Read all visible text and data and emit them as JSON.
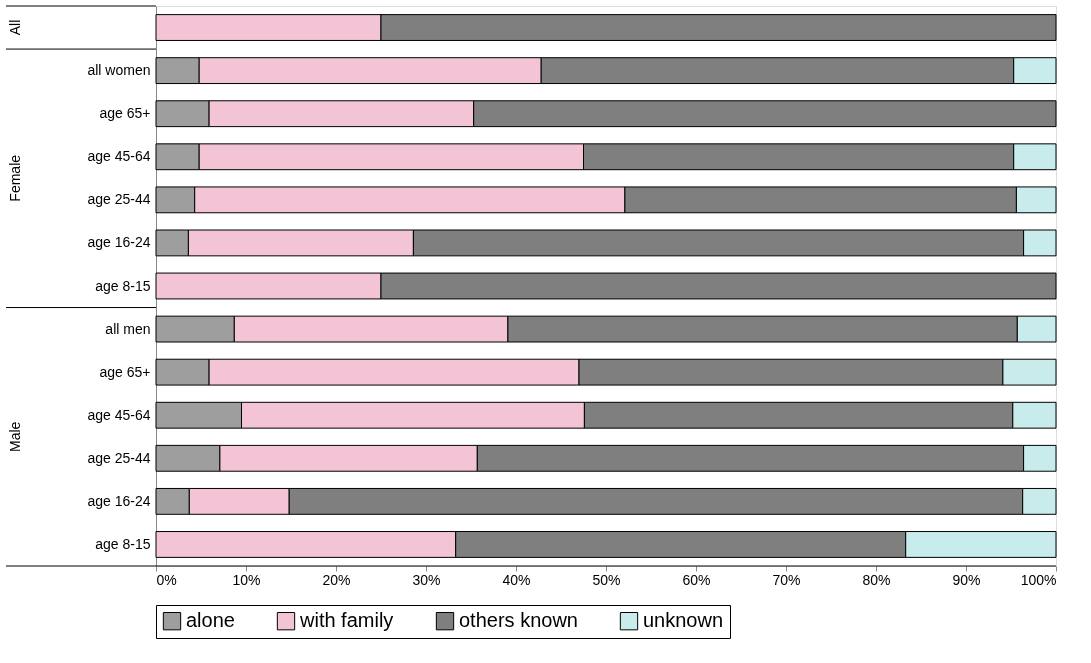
{
  "chart_data": {
    "type": "bar",
    "orientation": "horizontal",
    "stacked": true,
    "categories": [
      null,
      "all women",
      "age 65+",
      "age 45-64",
      "age 25-44",
      "age 16-24",
      "age 8-15",
      "all men",
      "age 65+",
      "age 45-64",
      "age 25-44",
      "age 16-24",
      "age 8-15"
    ],
    "series": [
      {
        "name": "alone",
        "color": "#9e9e9e",
        "values": [
          0,
          4.8,
          5.9,
          4.8,
          4.3,
          3.6,
          0,
          8.7,
          5.9,
          9.5,
          7.1,
          3.7,
          0
        ]
      },
      {
        "name": "with family",
        "color": "#f2c4d6",
        "values": [
          25,
          38,
          29.4,
          42.7,
          47.8,
          25,
          25,
          30.4,
          41.1,
          38.1,
          28.6,
          11.1,
          33.3
        ]
      },
      {
        "name": "others known",
        "color": "#7f7f7f",
        "values": [
          75,
          52.5,
          64.7,
          47.8,
          43.5,
          67.8,
          75,
          56.6,
          47.1,
          47.6,
          60.7,
          81.5,
          50
        ]
      },
      {
        "name": "unknown",
        "color": "#c8ecec",
        "values": [
          0,
          4.7,
          0,
          4.7,
          4.4,
          3.6,
          0,
          4.3,
          5.9,
          4.8,
          3.6,
          3.7,
          16.7
        ]
      }
    ],
    "annotations": [
      "All",
      "Female",
      "Male"
    ],
    "xlim": [
      0,
      100
    ],
    "xticks": [
      {
        "value": 0,
        "label": "0%"
      },
      {
        "value": 10,
        "label": "10%"
      },
      {
        "value": 20,
        "label": "20%"
      },
      {
        "value": 30,
        "label": "30%"
      },
      {
        "value": 40,
        "label": "40%"
      },
      {
        "value": 50,
        "label": "50%"
      },
      {
        "value": 60,
        "label": "60%"
      },
      {
        "value": 70,
        "label": "70%"
      },
      {
        "value": 80,
        "label": "80%"
      },
      {
        "value": 90,
        "label": "90%"
      },
      {
        "value": 100,
        "label": "100%"
      }
    ],
    "grid": false,
    "legend": "bottom"
  }
}
